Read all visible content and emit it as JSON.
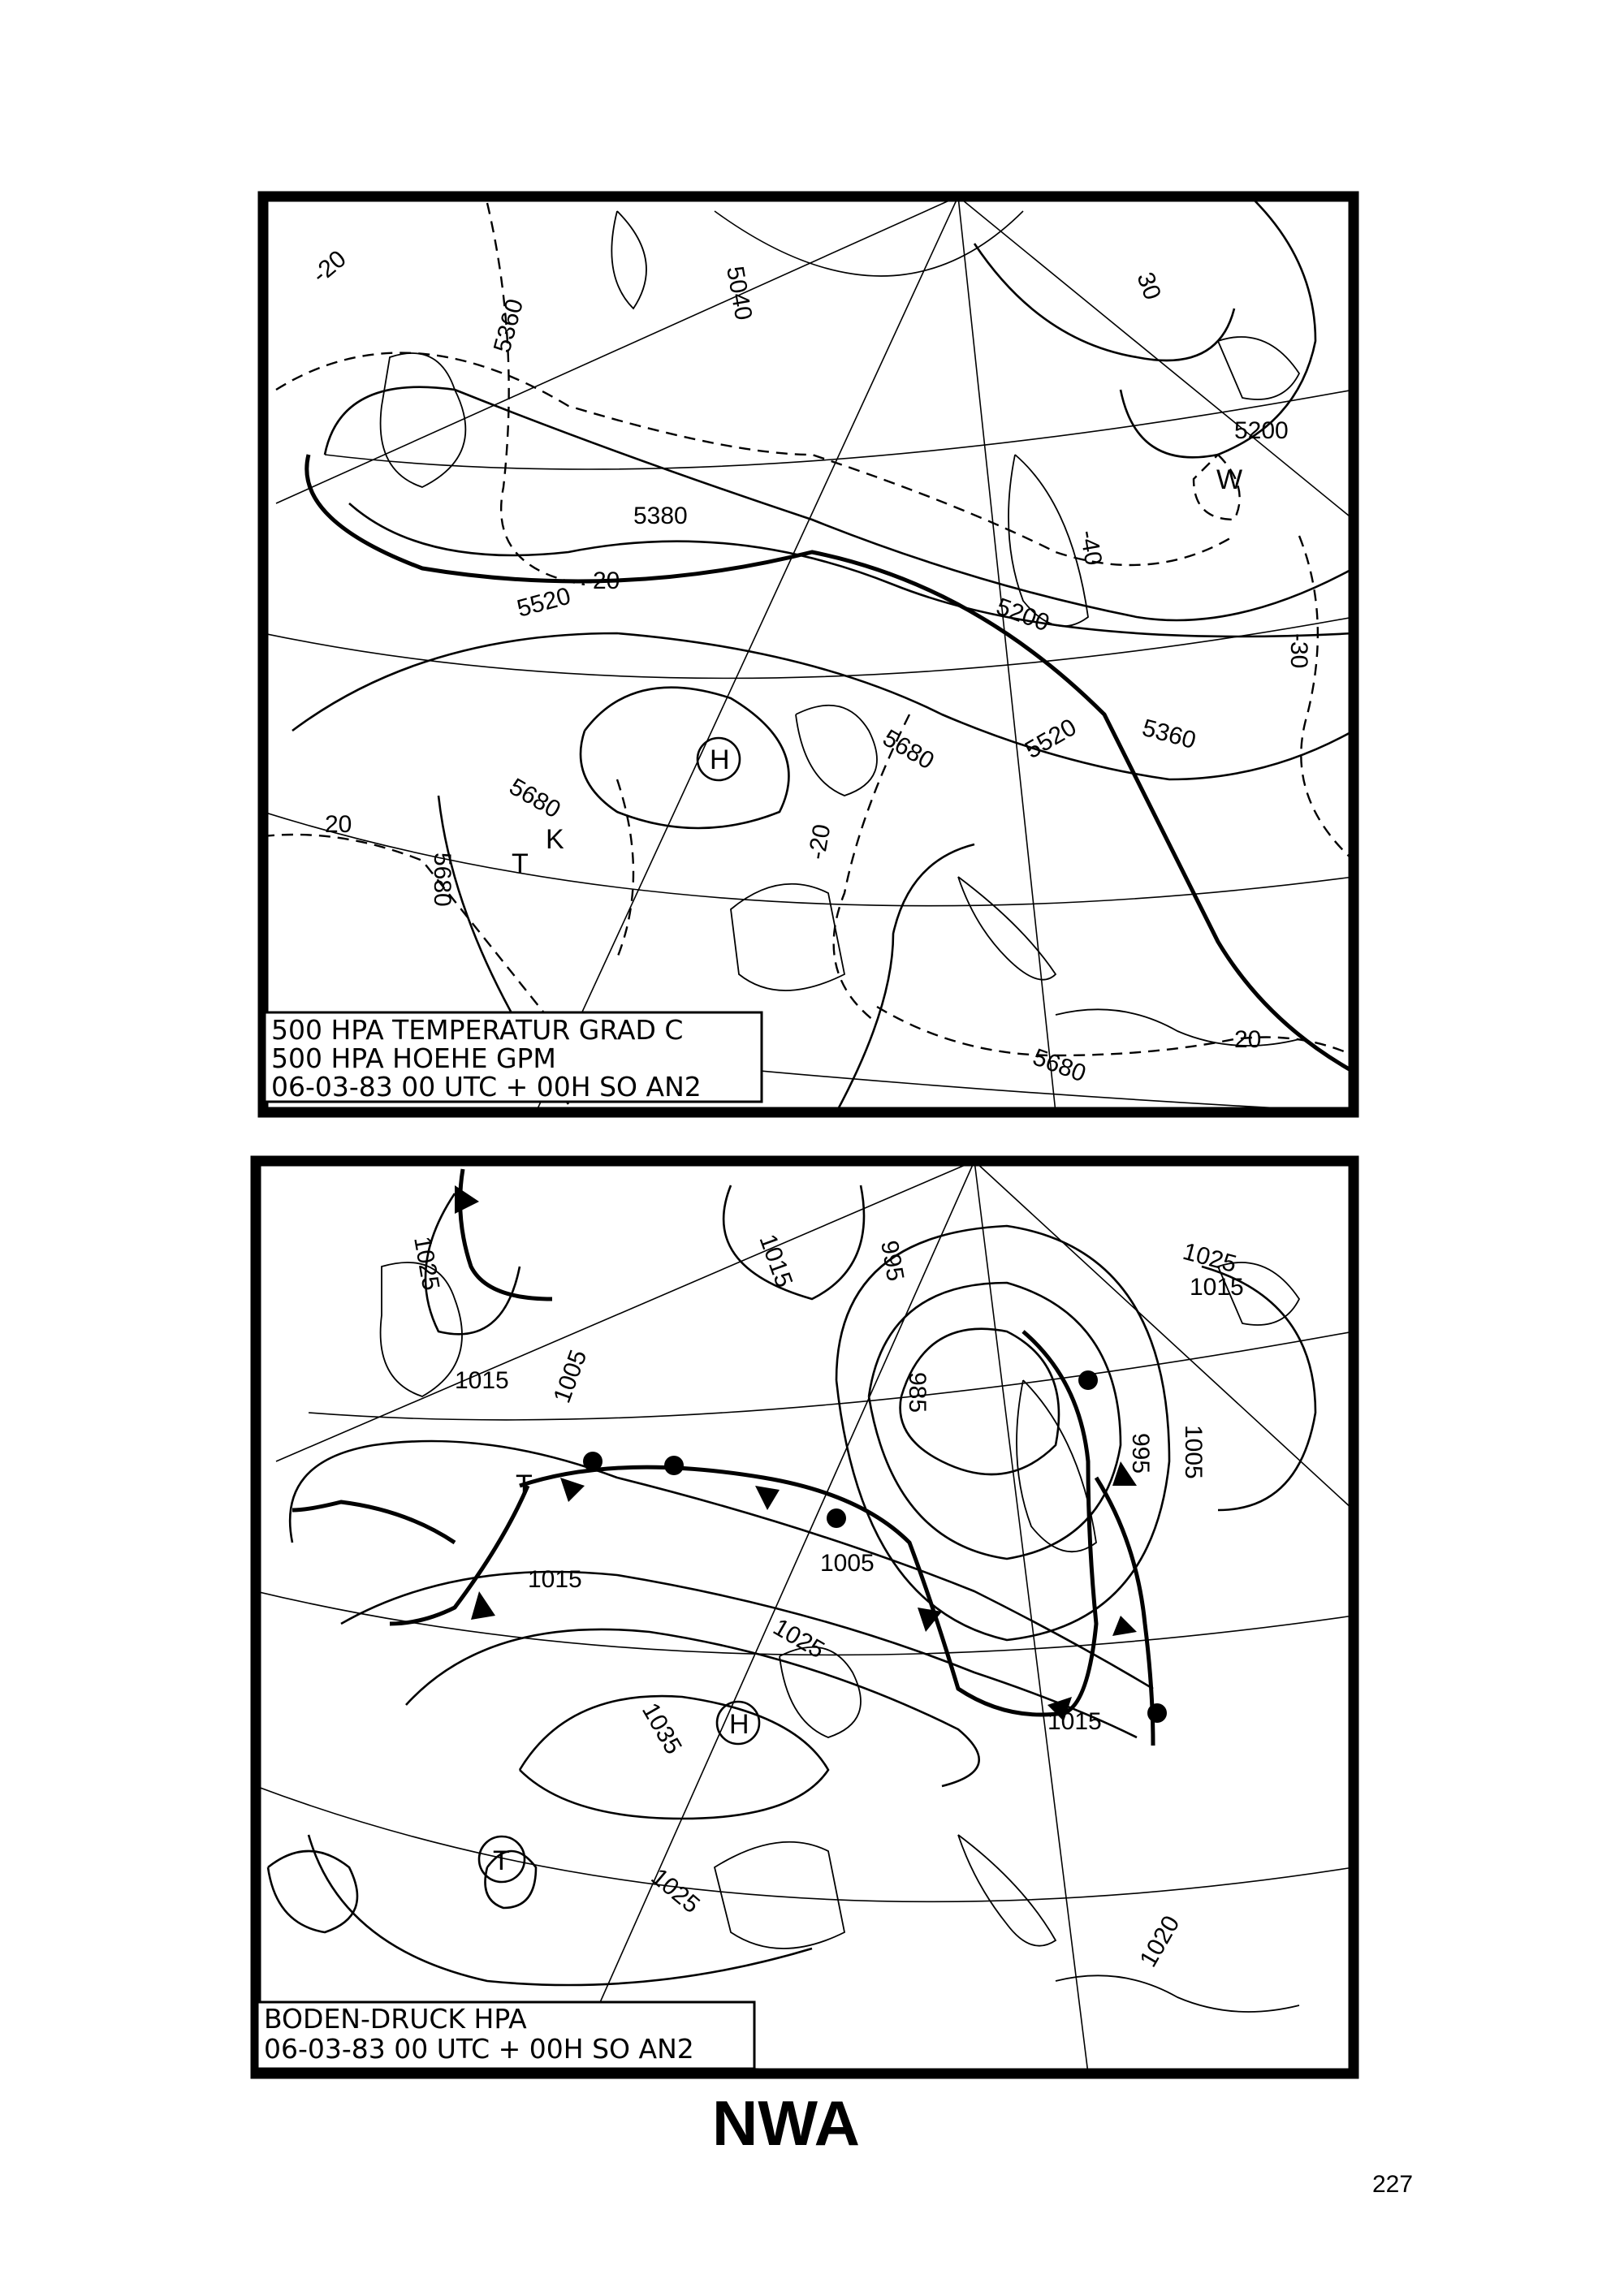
{
  "page": {
    "title": "NWA",
    "page_number": "227"
  },
  "maps": [
    {
      "legend": [
        "500 HPA TEMPERATUR GRAD C",
        "500 HPA HOEHE GPM",
        "06-03-83 00 UTC + 00H SO AN2"
      ],
      "contour_labels": [
        "5360",
        "5380",
        "5520",
        "-20",
        "5680",
        "5680",
        "-20",
        "5520",
        "5360",
        "5200",
        "5200",
        "-30",
        "-40",
        "5680",
        "20",
        "5680",
        "-20",
        "5040",
        "30",
        "20"
      ],
      "systems": [
        "H",
        "K",
        "W",
        "T"
      ]
    },
    {
      "legend": [
        "BODEN-DRUCK HPA",
        "06-03-83 00 UTC + 00H SO AN2"
      ],
      "contour_labels": [
        "1025",
        "1015",
        "995",
        "985",
        "1005",
        "1015",
        "1015",
        "1005",
        "1025",
        "1035",
        "1025",
        "1015",
        "1005",
        "995",
        "1025",
        "1020",
        "1015"
      ],
      "systems": [
        "H",
        "T",
        "T"
      ]
    }
  ]
}
